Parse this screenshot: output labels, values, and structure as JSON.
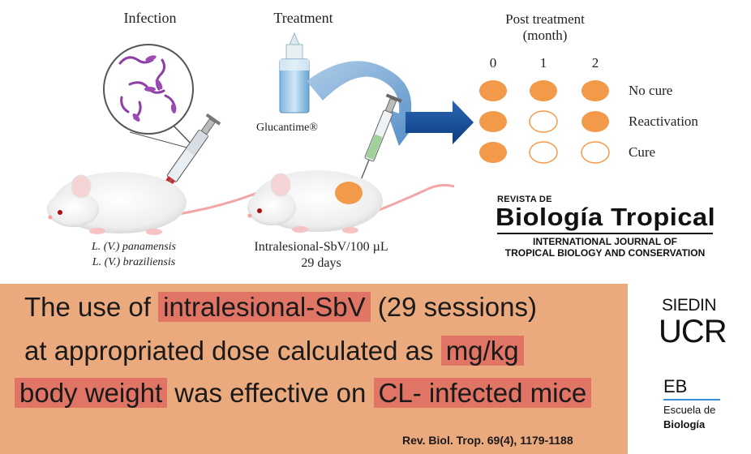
{
  "infection": {
    "title": "Infection",
    "strain_1": "L. (V.) panamensis",
    "strain_2": "L. (V.) braziliensis"
  },
  "treatment": {
    "title": "Treatment",
    "drug": "Glucantime®",
    "regimen": "Intralesional-SbV/100 µL",
    "duration": "29 days"
  },
  "post_treatment": {
    "title_line1": "Post treatment",
    "title_line2": "(month)",
    "months": [
      "0",
      "1",
      "2"
    ],
    "rows": [
      {
        "label": "No cure",
        "filled": [
          true,
          true,
          true
        ]
      },
      {
        "label": "Reactivation",
        "filled": [
          true,
          false,
          true
        ]
      },
      {
        "label": "Cure",
        "filled": [
          true,
          false,
          false
        ]
      }
    ],
    "fill_color": "#f29a4a"
  },
  "journal": {
    "prefix": "REVISTA DE",
    "name": "Biología Tropical",
    "subtitle_line1": "INTERNATIONAL JOURNAL OF",
    "subtitle_line2": "TROPICAL BIOLOGY AND CONSERVATION"
  },
  "conclusion": {
    "line1_pre": "The use of ",
    "line1_hl": "intralesional-SbV",
    "line1_post": " (29 sessions)",
    "line2_pre": "at appropriated dose calculated as ",
    "line2_hl": "mg/kg",
    "line3_hl1": "body weight",
    "line3_mid": " was effective on ",
    "line3_hl2": "CL- infected mice",
    "panel_color": "#eba97e",
    "highlight_color": "#e07465"
  },
  "citation": "Rev. Biol. Trop. 69(4), 1179-1188",
  "logos": {
    "siedin": "SIEDIN",
    "ucr": "UCR",
    "eb": "EB",
    "escuela": "Escuela de",
    "biologia": "Biología"
  }
}
